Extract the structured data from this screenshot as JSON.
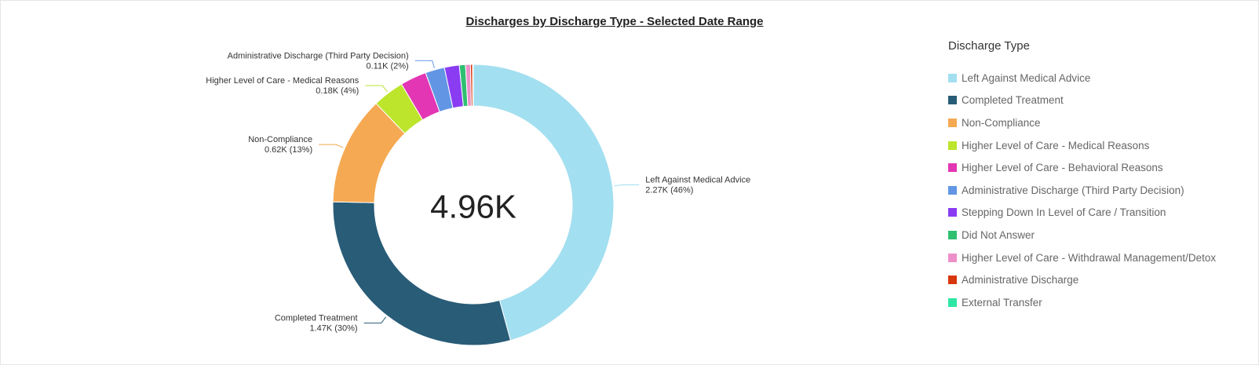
{
  "chart_data": {
    "type": "pie",
    "title": "Discharges by Discharge Type - Selected Date Range",
    "total_label": "4.96K",
    "legend": {
      "title": "Discharge Type",
      "placement": "right"
    },
    "slices": [
      {
        "name": "Left Against Medical Advice",
        "value": 2270,
        "percent": 46,
        "color": "#a2dff0",
        "label_value": "2.27K (46%)"
      },
      {
        "name": "Completed Treatment",
        "value": 1470,
        "percent": 30,
        "color": "#285c77",
        "label_value": "1.47K (30%)"
      },
      {
        "name": "Non-Compliance",
        "value": 620,
        "percent": 13,
        "color": "#f5a952",
        "label_value": "0.62K (13%)"
      },
      {
        "name": "Higher Level of Care - Medical Reasons",
        "value": 180,
        "percent": 4,
        "color": "#bce52c",
        "label_value": "0.18K (4%)"
      },
      {
        "name": "Higher Level of Care - Behavioral Reasons",
        "value": 150,
        "percent": 3,
        "color": "#e236b4",
        "label_value": ""
      },
      {
        "name": "Administrative Discharge (Third Party Decision)",
        "value": 110,
        "percent": 2,
        "color": "#6296e5",
        "label_value": "0.11K (2%)"
      },
      {
        "name": "Stepping Down In Level of Care / Transition",
        "value": 85,
        "percent": 2,
        "color": "#8a3cf2",
        "label_value": ""
      },
      {
        "name": "Did Not Answer",
        "value": 35,
        "percent": 1,
        "color": "#2fbf71",
        "label_value": ""
      },
      {
        "name": "Higher Level of Care - Withdrawal Management/Detox",
        "value": 28,
        "percent": 1,
        "color": "#ed8fc9",
        "label_value": ""
      },
      {
        "name": "Administrative Discharge",
        "value": 12,
        "percent": 0,
        "color": "#d8370c",
        "label_value": ""
      },
      {
        "name": "External Transfer",
        "value": 4,
        "percent": 0,
        "color": "#2ee6a4",
        "label_value": ""
      }
    ]
  }
}
